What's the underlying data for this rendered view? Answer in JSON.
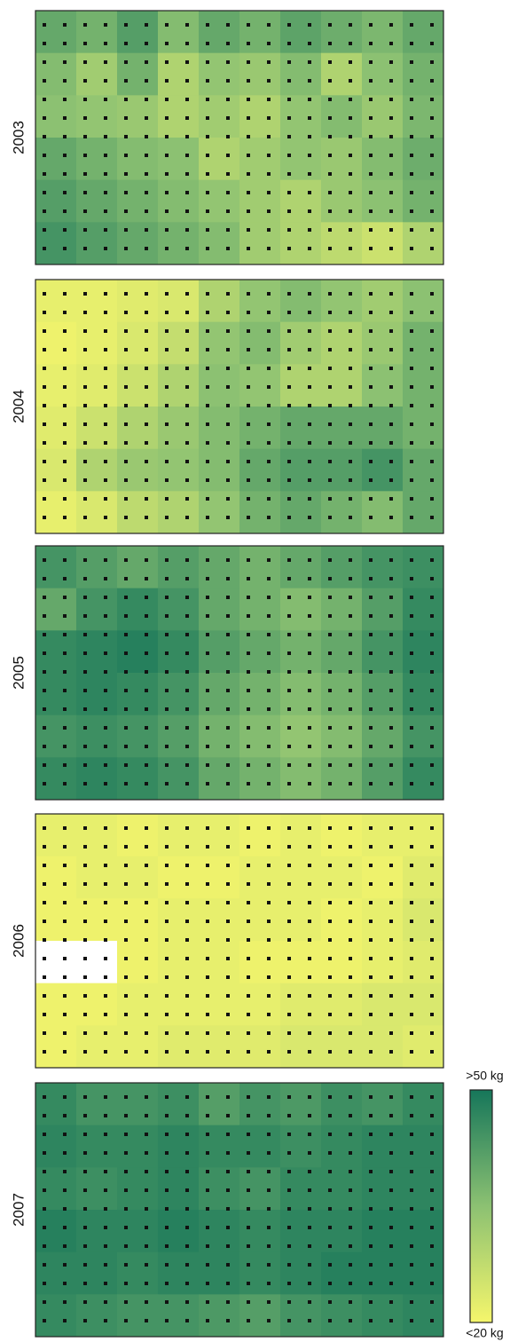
{
  "chart_data": [
    {
      "type": "heatmap",
      "ylabel": "2003",
      "zlim": [
        20,
        50
      ],
      "colorscale": [
        "#f5f66c",
        "#8cc172",
        "#16765a"
      ],
      "z": [
        [
          40,
          38,
          42,
          36,
          40,
          38,
          41,
          39,
          37,
          40
        ],
        [
          36,
          32,
          38,
          30,
          34,
          33,
          36,
          30,
          35,
          38
        ],
        [
          35,
          34,
          33,
          30,
          32,
          30,
          34,
          36,
          33,
          37
        ],
        [
          40,
          38,
          36,
          35,
          30,
          32,
          34,
          33,
          36,
          39
        ],
        [
          42,
          40,
          38,
          36,
          34,
          32,
          30,
          33,
          35,
          38
        ],
        [
          44,
          42,
          40,
          38,
          36,
          32,
          30,
          28,
          26,
          30
        ]
      ]
    },
    {
      "type": "heatmap",
      "ylabel": "2004",
      "zlim": [
        20,
        50
      ],
      "colorscale": [
        "#f5f66c",
        "#8cc172",
        "#16765a"
      ],
      "z": [
        [
          22,
          22,
          23,
          24,
          30,
          34,
          36,
          34,
          32,
          35
        ],
        [
          21,
          22,
          24,
          27,
          34,
          36,
          32,
          30,
          33,
          38
        ],
        [
          22,
          23,
          26,
          30,
          35,
          34,
          30,
          30,
          35,
          38
        ],
        [
          23,
          26,
          30,
          33,
          36,
          38,
          40,
          40,
          40,
          38
        ],
        [
          24,
          30,
          33,
          34,
          36,
          40,
          42,
          42,
          44,
          40
        ],
        [
          22,
          24,
          28,
          30,
          34,
          38,
          40,
          38,
          36,
          40
        ]
      ]
    },
    {
      "type": "heatmap",
      "ylabel": "2005",
      "zlim": [
        20,
        50
      ],
      "colorscale": [
        "#f5f66c",
        "#8cc172",
        "#16765a"
      ],
      "z": [
        [
          44,
          42,
          40,
          42,
          40,
          38,
          40,
          42,
          44,
          45
        ],
        [
          40,
          44,
          46,
          44,
          40,
          38,
          36,
          38,
          42,
          46
        ],
        [
          46,
          47,
          48,
          46,
          42,
          40,
          38,
          40,
          44,
          47
        ],
        [
          46,
          47,
          46,
          44,
          40,
          38,
          36,
          38,
          42,
          46
        ],
        [
          44,
          45,
          44,
          42,
          38,
          36,
          34,
          36,
          40,
          44
        ],
        [
          46,
          47,
          46,
          44,
          40,
          38,
          36,
          38,
          42,
          46
        ]
      ]
    },
    {
      "type": "heatmap",
      "ylabel": "2006",
      "zlim": [
        20,
        50
      ],
      "colorscale": [
        "#f5f66c",
        "#8cc172",
        "#16765a"
      ],
      "z": [
        [
          22,
          22,
          21,
          22,
          22,
          21,
          22,
          21,
          22,
          22
        ],
        [
          21,
          22,
          22,
          21,
          21,
          22,
          22,
          22,
          21,
          23
        ],
        [
          21,
          21,
          21,
          22,
          22,
          22,
          22,
          21,
          22,
          24
        ],
        [
          null,
          null,
          21,
          22,
          22,
          21,
          21,
          21,
          22,
          23
        ],
        [
          21,
          21,
          22,
          22,
          22,
          22,
          23,
          23,
          24,
          24
        ],
        [
          21,
          22,
          22,
          23,
          23,
          23,
          24,
          24,
          24,
          23
        ]
      ]
    },
    {
      "type": "heatmap",
      "ylabel": "2007",
      "zlim": [
        20,
        50
      ],
      "colorscale": [
        "#f5f66c",
        "#8cc172",
        "#16765a"
      ],
      "zticks": [
        {
          "value": 20,
          "label": "<20 kg"
        },
        {
          "value": 50,
          "label": ">50 kg"
        }
      ],
      "z": [
        [
          46,
          44,
          44,
          45,
          42,
          44,
          43,
          45,
          44,
          46
        ],
        [
          47,
          46,
          46,
          47,
          46,
          46,
          45,
          46,
          47,
          47
        ],
        [
          46,
          45,
          46,
          47,
          45,
          44,
          46,
          46,
          47,
          47
        ],
        [
          48,
          47,
          47,
          48,
          47,
          46,
          47,
          47,
          48,
          48
        ],
        [
          47,
          47,
          46,
          47,
          47,
          46,
          47,
          48,
          48,
          48
        ],
        [
          46,
          45,
          44,
          44,
          43,
          42,
          44,
          45,
          46,
          47
        ]
      ]
    }
  ]
}
